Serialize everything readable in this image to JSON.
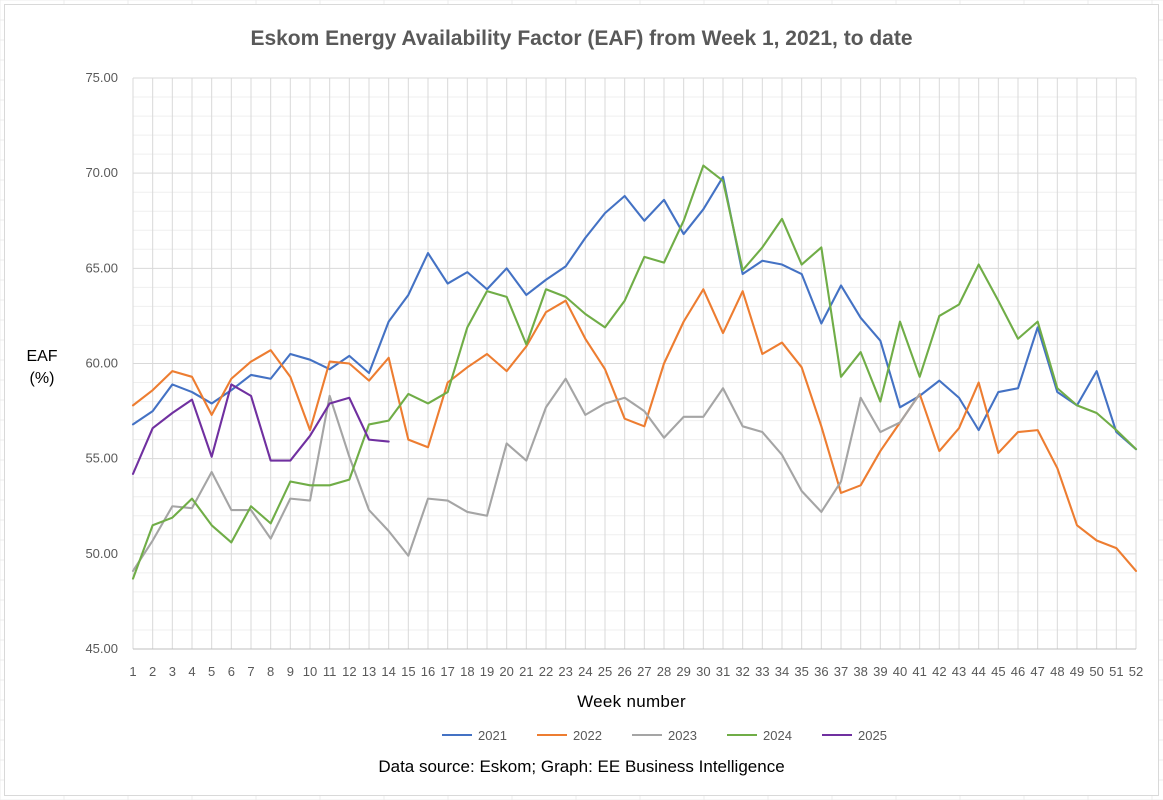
{
  "chart_data": {
    "type": "line",
    "title": "Eskom Energy Availability Factor (EAF) from Week 1, 2021, to date",
    "xlabel": "Week number",
    "ylabel_lines": [
      "EAF",
      "(%)"
    ],
    "source_note": "Data source: Eskom; Graph: EE Business Intelligence",
    "ylim": [
      45,
      75
    ],
    "y_ticks": [
      "45.00",
      "50.00",
      "55.00",
      "60.00",
      "65.00",
      "70.00",
      "75.00"
    ],
    "y_tick_values": [
      45,
      50,
      55,
      60,
      65,
      70,
      75
    ],
    "x": [
      1,
      2,
      3,
      4,
      5,
      6,
      7,
      8,
      9,
      10,
      11,
      12,
      13,
      14,
      15,
      16,
      17,
      18,
      19,
      20,
      21,
      22,
      23,
      24,
      25,
      26,
      27,
      28,
      29,
      30,
      31,
      32,
      33,
      34,
      35,
      36,
      37,
      38,
      39,
      40,
      41,
      42,
      43,
      44,
      45,
      46,
      47,
      48,
      49,
      50,
      51,
      52
    ],
    "grid": true,
    "legend_position": "bottom",
    "series": [
      {
        "name": "2021",
        "color": "#4472c4",
        "values": [
          56.8,
          57.5,
          58.9,
          58.5,
          57.9,
          58.6,
          59.4,
          59.2,
          60.5,
          60.2,
          59.7,
          60.4,
          59.5,
          62.2,
          63.6,
          65.8,
          64.2,
          64.8,
          63.9,
          65.0,
          63.6,
          64.4,
          65.1,
          66.6,
          67.9,
          68.8,
          67.5,
          68.6,
          66.8,
          68.1,
          69.8,
          64.7,
          65.4,
          65.2,
          64.7,
          62.1,
          64.1,
          62.4,
          61.2,
          57.7,
          58.3,
          59.1,
          58.2,
          56.5,
          58.5,
          58.7,
          61.9,
          58.5,
          57.8,
          59.6,
          56.4,
          55.5
        ]
      },
      {
        "name": "2022",
        "color": "#ed7d31",
        "values": [
          57.8,
          58.6,
          59.6,
          59.3,
          57.3,
          59.2,
          60.1,
          60.7,
          59.3,
          56.5,
          60.1,
          60.0,
          59.1,
          60.3,
          56.0,
          55.6,
          59.0,
          59.8,
          60.5,
          59.6,
          60.9,
          62.7,
          63.3,
          61.3,
          59.7,
          57.1,
          56.7,
          60.0,
          62.2,
          63.9,
          61.6,
          63.8,
          60.5,
          61.1,
          59.8,
          56.7,
          53.2,
          53.6,
          55.4,
          56.9,
          58.4,
          55.4,
          56.6,
          59.0,
          55.3,
          56.4,
          56.5,
          54.5,
          51.5,
          50.7,
          50.3,
          49.1
        ]
      },
      {
        "name": "2023",
        "color": "#a5a5a5",
        "values": [
          49.1,
          50.7,
          52.5,
          52.4,
          54.3,
          52.3,
          52.3,
          50.8,
          52.9,
          52.8,
          58.3,
          55.1,
          52.3,
          51.2,
          49.9,
          52.9,
          52.8,
          52.2,
          52.0,
          55.8,
          54.9,
          57.7,
          59.2,
          57.3,
          57.9,
          58.2,
          57.5,
          56.1,
          57.2,
          57.2,
          58.7,
          56.7,
          56.4,
          55.2,
          53.3,
          52.2,
          53.8,
          58.2,
          56.4,
          56.9,
          58.4,
          null,
          null,
          null,
          null,
          null,
          null,
          null,
          null,
          null,
          null,
          null
        ]
      },
      {
        "name": "2024",
        "color": "#70ad47",
        "values": [
          48.7,
          51.5,
          51.9,
          52.9,
          51.5,
          50.6,
          52.5,
          51.6,
          53.8,
          53.6,
          53.6,
          53.9,
          56.8,
          57.0,
          58.4,
          57.9,
          58.5,
          61.9,
          63.8,
          63.5,
          61.0,
          63.9,
          63.5,
          62.6,
          61.9,
          63.3,
          65.6,
          65.3,
          67.5,
          70.4,
          69.6,
          64.9,
          66.1,
          67.6,
          65.2,
          66.1,
          59.3,
          60.6,
          58.0,
          62.2,
          59.3,
          62.5,
          63.1,
          65.2,
          63.3,
          61.3,
          62.2,
          58.7,
          57.8,
          57.4,
          56.5,
          55.5
        ]
      },
      {
        "name": "2025",
        "color": "#7030a0",
        "values": [
          54.2,
          56.6,
          57.4,
          58.1,
          55.1,
          58.9,
          58.3,
          54.9,
          54.9,
          56.2,
          57.9,
          58.2,
          56.0,
          55.9,
          null,
          null,
          null,
          null,
          null,
          null,
          null,
          null,
          null,
          null,
          null,
          null,
          null,
          null,
          null,
          null,
          null,
          null,
          null,
          null,
          null,
          null,
          null,
          null,
          null,
          null,
          null,
          null,
          null,
          null,
          null,
          null,
          null,
          null,
          null,
          null,
          null,
          null
        ]
      }
    ]
  }
}
